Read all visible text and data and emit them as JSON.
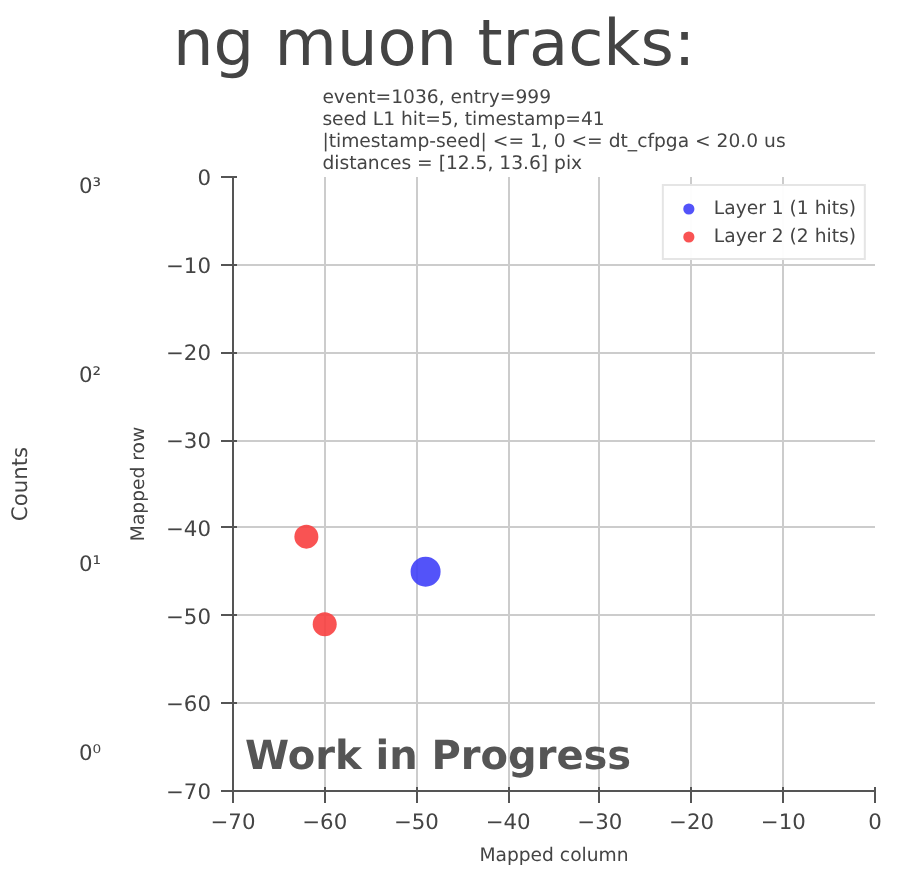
{
  "chart_data": {
    "type": "scatter",
    "title": "event=1036, entry=999\nseed L1 hit=5, timestamp=41\n|timestamp-seed| <= 1, 0 <= dt_cfpga < 20.0 us\ndistances = [12.5, 13.6] pix",
    "xlabel": "Mapped column",
    "ylabel": "Mapped row",
    "series": [
      {
        "name": "Layer 1 (1 hits)",
        "color": "#4040f8",
        "x": [
          -49
        ],
        "values": [
          -45
        ]
      },
      {
        "name": "Layer 2 (2 hits)",
        "color": "#f84040",
        "x": [
          -62,
          -60
        ],
        "values": [
          -41,
          -51
        ]
      }
    ],
    "xlim": [
      -70,
      0
    ],
    "ylim": [
      -70,
      0
    ],
    "xticks": [
      -70,
      -60,
      -50,
      -40,
      -30,
      -20,
      -10,
      0
    ],
    "yticks": [
      -70,
      -60,
      -50,
      -40,
      -30,
      -20,
      -10,
      0
    ],
    "grid": true,
    "legend": "top right",
    "marker": "circle",
    "annotations": [
      "ng muon tracks:",
      "Work in Progress",
      "Counts",
      "0³",
      "0²",
      "0¹",
      "0⁰"
    ]
  }
}
